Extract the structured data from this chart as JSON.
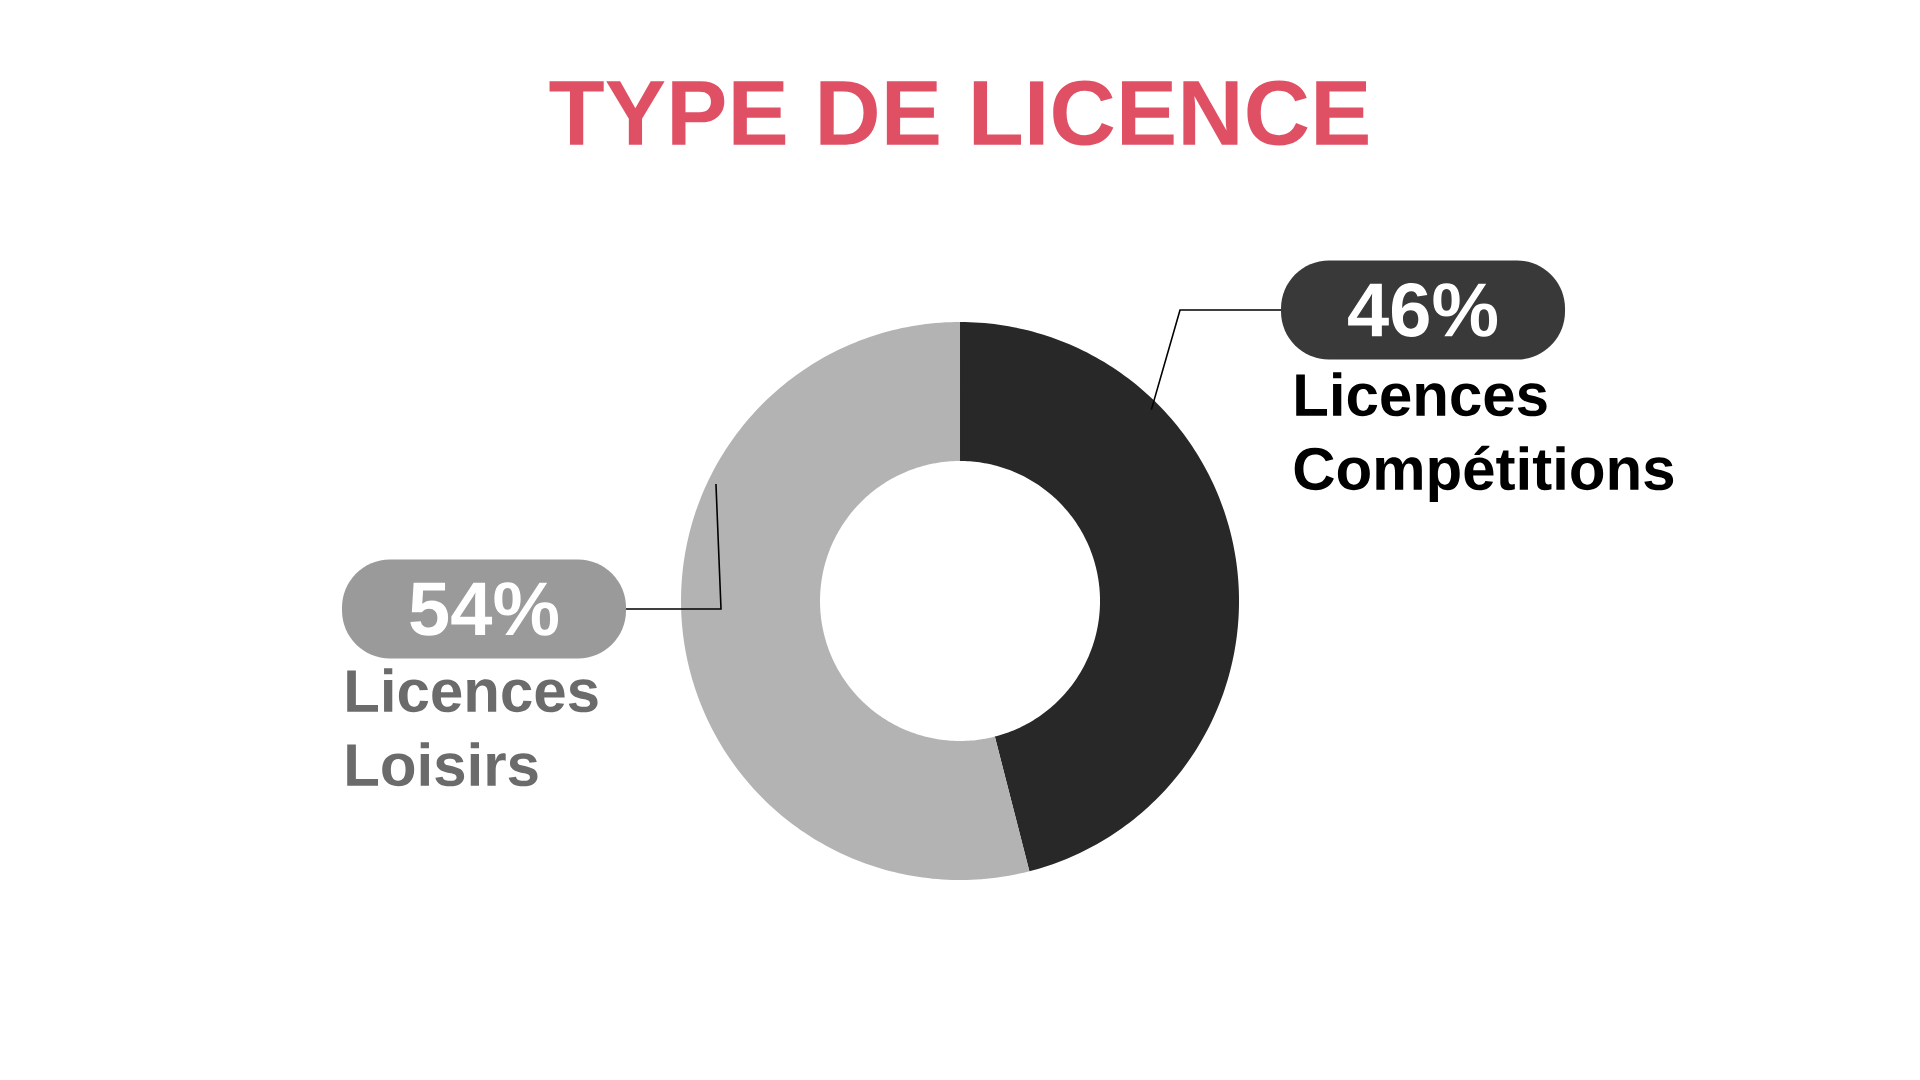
{
  "chart_data": {
    "type": "donut",
    "title": "TYPE DE LICENCE",
    "categories": [
      "Licences Compétitions",
      "Licences Loisirs"
    ],
    "values": [
      46,
      54
    ],
    "colors": [
      "#282828",
      "#b3b3b3"
    ],
    "value_labels": [
      "46%",
      "54%"
    ]
  }
}
